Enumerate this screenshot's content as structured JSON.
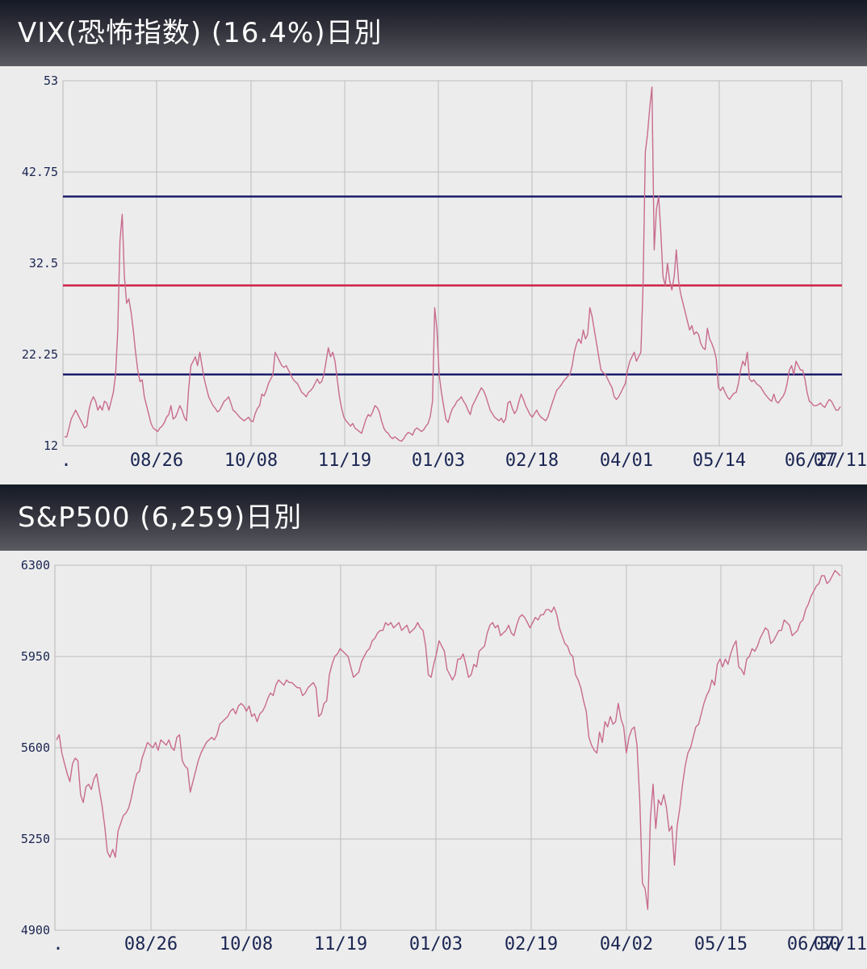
{
  "charts": [
    {
      "id": "vix",
      "header": "VIX(恐怖指数) (16.4%)日別",
      "chart_data": {
        "type": "line",
        "title": "VIX(恐怖指数) (16.4%)日別",
        "ylim": [
          12,
          53
        ],
        "yticks": [
          "53",
          "42.75",
          "32.5",
          "22.25",
          "12"
        ],
        "xticks": [
          ".",
          "08/26",
          "10/08",
          "11/19",
          "01/03",
          "02/18",
          "04/01",
          "05/14",
          "06/27",
          "07/11"
        ],
        "ref_lines": [
          {
            "value": 40,
            "color": "#1c1c6b"
          },
          {
            "value": 30,
            "color": "#cc2244"
          },
          {
            "value": 20,
            "color": "#1c1c6b"
          }
        ],
        "line_color": "#c86b8e",
        "grid": true,
        "series": [
          {
            "values": [
              13,
              13,
              14,
              15,
              15.5,
              16,
              15.5,
              15,
              14.5,
              14,
              14.2,
              16,
              17,
              17.5,
              17,
              16,
              16.5,
              16,
              17,
              16.8,
              16,
              17,
              18,
              20,
              25,
              35,
              38,
              31,
              28,
              28.5,
              27,
              25,
              22.5,
              20.5,
              19.2,
              19.4,
              17.5,
              16.5,
              15.5,
              14.5,
              14,
              13.8,
              13.6,
              14,
              14.2,
              14.6,
              15.2,
              15.5,
              16.5,
              15,
              15.2,
              15.8,
              16.5,
              16,
              15.2,
              14.8,
              18.5,
              21,
              21.5,
              22,
              21,
              22.5,
              21,
              19.5,
              18.5,
              17.5,
              17,
              16.5,
              16.2,
              15.8,
              16,
              16.5,
              17,
              17.2,
              17.5,
              16.8,
              16,
              15.8,
              15.5,
              15.2,
              15,
              14.8,
              15,
              15.2,
              14.8,
              14.7,
              15.6,
              16.2,
              16.5,
              17.8,
              17.6,
              18.2,
              19,
              19.5,
              20,
              22.5,
              22,
              21.5,
              21,
              20.8,
              21,
              20.5,
              20,
              19.5,
              19.2,
              19,
              18.5,
              18,
              17.8,
              17.5,
              18,
              18.2,
              18.5,
              19,
              19.5,
              19,
              19.2,
              20,
              21.5,
              23,
              22,
              22.5,
              21.5,
              19.5,
              17.5,
              16.2,
              15.2,
              14.8,
              14.5,
              14.2,
              14.5,
              14,
              13.8,
              13.6,
              13.4,
              14.2,
              15,
              15.5,
              15.3,
              15.8,
              16.5,
              16.3,
              15.8,
              14.8,
              14,
              13.6,
              13.4,
              13,
              12.8,
              13,
              12.8,
              12.6,
              12.5,
              12.8,
              13.2,
              13.5,
              13.4,
              13.2,
              13.8,
              14,
              13.8,
              13.6,
              13.8,
              14.2,
              14.5,
              15.3,
              17,
              27.5,
              25,
              20,
              18,
              16.5,
              15,
              14.6,
              15.5,
              16.2,
              16.5,
              17,
              17.2,
              17.5,
              17,
              16.6,
              16,
              15.5,
              16.5,
              17,
              17.5,
              18,
              18.5,
              18.2,
              17.6,
              16.8,
              16,
              15.6,
              15.2,
              15,
              14.8,
              15.1,
              14.6,
              15,
              16.8,
              17,
              16.2,
              15.6,
              16,
              17,
              17.8,
              17.2,
              16.5,
              16,
              15.5,
              15.2,
              15.6,
              16,
              15.5,
              15.2,
              15,
              14.8,
              15.2,
              16,
              16.8,
              17.5,
              18.2,
              18.5,
              18.8,
              19.2,
              19.5,
              19.8,
              20,
              21,
              22.5,
              23.5,
              24,
              23.5,
              25,
              24,
              24.5,
              27.5,
              26.5,
              25,
              23.5,
              22,
              20.5,
              20.2,
              20,
              19.5,
              19,
              18.5,
              17.5,
              17.2,
              17.5,
              18,
              18.5,
              19,
              20.5,
              21.5,
              22,
              22.5,
              21.5,
              22,
              22.5,
              30,
              45,
              47,
              50,
              52.3,
              34,
              38.5,
              40,
              36,
              31,
              30,
              32.5,
              30.5,
              29.5,
              31,
              34,
              30.5,
              29,
              28,
              27,
              26,
              25,
              25.5,
              24.5,
              24.8,
              24.5,
              23.5,
              23,
              22.8,
              25.2,
              24,
              23.5,
              22.8,
              21.8,
              18.5,
              18.2,
              18.6,
              18,
              17.5,
              17.2,
              17.6,
              17.9,
              18,
              19,
              20.5,
              21.5,
              21,
              22.5,
              19.5,
              19.2,
              19.4,
              19,
              18.8,
              18.6,
              18.2,
              17.8,
              17.5,
              17.2,
              17,
              17.8,
              17,
              16.8,
              17.2,
              17.5,
              18,
              19,
              20.5,
              21,
              20,
              21.5,
              21,
              20.5,
              20.5,
              19.5,
              18,
              17,
              16.8,
              16.5,
              16.5,
              16.6,
              16.8,
              16.5,
              16.3,
              16.8,
              17.2,
              17,
              16.5,
              16,
              16,
              16.4
            ],
            "note": ""
          }
        ]
      }
    },
    {
      "id": "sp500",
      "header": "S&P500 (6,259)日別",
      "chart_data": {
        "type": "line",
        "title": "S&P500 (6,259)日別",
        "ylim": [
          4900,
          6300
        ],
        "yticks": [
          "6300",
          "5950",
          "5600",
          "5250",
          "4900"
        ],
        "xticks": [
          ".",
          "08/26",
          "10/08",
          "11/19",
          "01/03",
          "02/19",
          "04/02",
          "05/15",
          "06/30",
          "07/11"
        ],
        "line_color": "#c86b8e",
        "grid": true,
        "series": [
          {
            "values": [
              5630,
              5650,
              5580,
              5540,
              5500,
              5470,
              5540,
              5560,
              5550,
              5420,
              5390,
              5450,
              5460,
              5440,
              5480,
              5500,
              5440,
              5380,
              5300,
              5200,
              5180,
              5210,
              5180,
              5280,
              5310,
              5340,
              5350,
              5370,
              5410,
              5460,
              5500,
              5510,
              5560,
              5590,
              5620,
              5610,
              5600,
              5620,
              5590,
              5630,
              5620,
              5610,
              5630,
              5600,
              5590,
              5640,
              5650,
              5550,
              5530,
              5520,
              5430,
              5470,
              5510,
              5550,
              5580,
              5600,
              5620,
              5630,
              5640,
              5630,
              5650,
              5690,
              5700,
              5710,
              5720,
              5740,
              5750,
              5730,
              5760,
              5770,
              5760,
              5740,
              5760,
              5720,
              5730,
              5700,
              5730,
              5740,
              5760,
              5790,
              5810,
              5800,
              5840,
              5860,
              5850,
              5840,
              5860,
              5850,
              5850,
              5840,
              5830,
              5830,
              5800,
              5810,
              5830,
              5840,
              5850,
              5830,
              5720,
              5730,
              5770,
              5780,
              5880,
              5920,
              5950,
              5960,
              5980,
              5970,
              5960,
              5950,
              5910,
              5870,
              5880,
              5890,
              5930,
              5950,
              5970,
              5980,
              6010,
              6020,
              6040,
              6050,
              6050,
              6080,
              6070,
              6080,
              6060,
              6070,
              6080,
              6050,
              6060,
              6070,
              6040,
              6050,
              6060,
              6080,
              6060,
              6050,
              5990,
              5880,
              5870,
              5920,
              5960,
              6010,
              5990,
              5970,
              5900,
              5880,
              5860,
              5880,
              5940,
              5940,
              5960,
              5920,
              5870,
              5880,
              5920,
              5910,
              5970,
              5980,
              5990,
              6040,
              6070,
              6080,
              6060,
              6070,
              6030,
              6040,
              6050,
              6070,
              6040,
              6030,
              6070,
              6100,
              6110,
              6100,
              6080,
              6060,
              6080,
              6100,
              6090,
              6110,
              6110,
              6130,
              6130,
              6120,
              6140,
              6110,
              6060,
              6030,
              6000,
              5990,
              5960,
              5950,
              5880,
              5860,
              5830,
              5780,
              5740,
              5640,
              5610,
              5590,
              5580,
              5660,
              5620,
              5700,
              5680,
              5720,
              5690,
              5700,
              5770,
              5710,
              5680,
              5580,
              5640,
              5670,
              5680,
              5610,
              5400,
              5080,
              5060,
              4980,
              5330,
              5460,
              5290,
              5400,
              5380,
              5420,
              5370,
              5280,
              5300,
              5150,
              5300,
              5370,
              5460,
              5530,
              5580,
              5600,
              5640,
              5680,
              5690,
              5730,
              5770,
              5800,
              5820,
              5860,
              5840,
              5920,
              5940,
              5910,
              5940,
              5920,
              5960,
              5990,
              6010,
              5910,
              5900,
              5880,
              5940,
              5950,
              5980,
              5970,
              5990,
              6020,
              6040,
              6060,
              6050,
              6000,
              6010,
              6030,
              6050,
              6050,
              6090,
              6080,
              6070,
              6030,
              6040,
              6050,
              6080,
              6090,
              6130,
              6150,
              6180,
              6200,
              6220,
              6230,
              6260,
              6260,
              6230,
              6240,
              6260,
              6280,
              6270,
              6259
            ]
          }
        ]
      }
    }
  ]
}
